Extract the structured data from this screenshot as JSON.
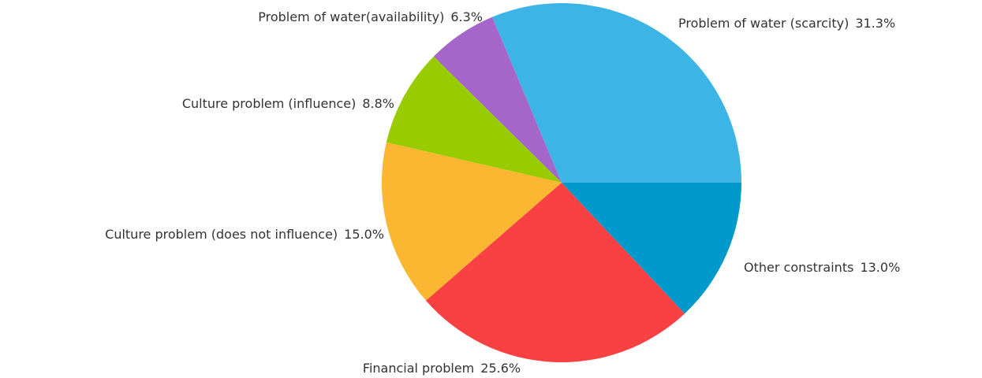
{
  "chart_data": {
    "type": "pie",
    "categories": [
      "Problem of water (scarcity)",
      "Problem of water(availability)",
      "Culture problem (influence)",
      "Culture problem (does not influence)",
      "Financial problem",
      "Other constraints"
    ],
    "values": [
      31.3,
      6.3,
      8.8,
      15.0,
      25.6,
      13.0
    ],
    "value_labels": [
      "31.3%",
      "6.3%",
      "8.8%",
      "15.0%",
      "25.6%",
      "13.0%"
    ],
    "colors": [
      "#3db4e6",
      "#a566c9",
      "#99cc00",
      "#fbb731",
      "#f94144",
      "#0099cc"
    ]
  }
}
